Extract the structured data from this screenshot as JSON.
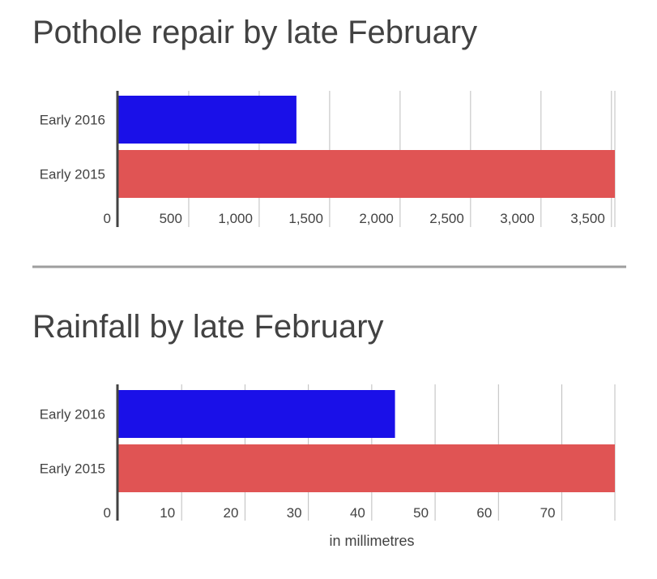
{
  "chart_data": [
    {
      "type": "bar",
      "orientation": "horizontal",
      "title": "Pothole repair by late February",
      "categories": [
        "Early 2016",
        "Early 2015"
      ],
      "values": [
        1270,
        3530
      ],
      "colors": [
        "#1a10e8",
        "#e05454"
      ],
      "xlim": [
        0,
        3530
      ],
      "ticks": [
        0,
        500,
        1000,
        1500,
        2000,
        2500,
        3000,
        3500
      ],
      "tick_labels": [
        "0",
        "500",
        "1,000",
        "1,500",
        "2,000",
        "2,500",
        "3,000",
        "3,500"
      ],
      "xlabel": "",
      "grid": true,
      "legend": "none"
    },
    {
      "type": "bar",
      "orientation": "horizontal",
      "title": "Rainfall by late February",
      "categories": [
        "Early 2016",
        "Early 2015"
      ],
      "values": [
        43.8,
        78.5
      ],
      "colors": [
        "#1a10e8",
        "#e05454"
      ],
      "xlim": [
        0,
        78.5
      ],
      "ticks": [
        0,
        10,
        20,
        30,
        40,
        50,
        60,
        70
      ],
      "tick_labels": [
        "0",
        "10",
        "20",
        "30",
        "40",
        "50",
        "60",
        "70"
      ],
      "xlabel": "in millimetres",
      "grid": true,
      "legend": "none"
    }
  ],
  "colors": {
    "text": "#424242",
    "grid": "#bdbdbd",
    "axis": "#424242",
    "divider": "#9e9e9e"
  }
}
